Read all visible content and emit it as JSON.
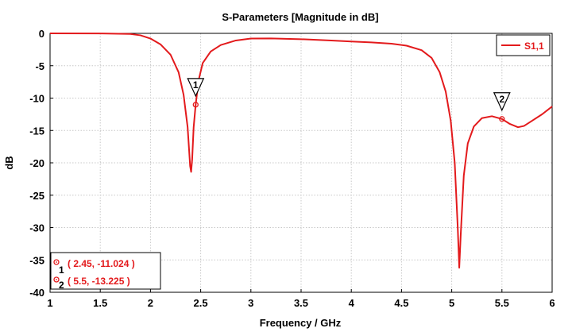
{
  "chart_data": {
    "type": "line",
    "title": "S-Parameters [Magnitude in dB]",
    "xlabel": "Frequency / GHz",
    "ylabel": "dB",
    "xlim": [
      1,
      6
    ],
    "ylim": [
      -40,
      0
    ],
    "x_ticks": [
      "1",
      "1.5",
      "2",
      "2.5",
      "3",
      "3.5",
      "4",
      "4.5",
      "5",
      "5.5",
      "6"
    ],
    "y_ticks": [
      "0",
      "-5",
      "-10",
      "-15",
      "-20",
      "-25",
      "-30",
      "-35",
      "-40"
    ],
    "grid": true,
    "legend": {
      "position": "top-right",
      "entries": [
        "S1,1"
      ]
    },
    "series": [
      {
        "name": "S1,1",
        "color": "#e31a1c",
        "points": [
          [
            1.0,
            0.0
          ],
          [
            1.5,
            -0.02
          ],
          [
            1.8,
            -0.1
          ],
          [
            1.9,
            -0.3
          ],
          [
            2.0,
            -0.8
          ],
          [
            2.1,
            -1.7
          ],
          [
            2.2,
            -3.3
          ],
          [
            2.28,
            -6.0
          ],
          [
            2.33,
            -9.5
          ],
          [
            2.37,
            -14.5
          ],
          [
            2.395,
            -20.5
          ],
          [
            2.405,
            -21.4
          ],
          [
            2.415,
            -19.5
          ],
          [
            2.43,
            -14.5
          ],
          [
            2.45,
            -11.024
          ],
          [
            2.48,
            -7.2
          ],
          [
            2.52,
            -4.6
          ],
          [
            2.6,
            -2.8
          ],
          [
            2.7,
            -1.8
          ],
          [
            2.85,
            -1.1
          ],
          [
            3.0,
            -0.8
          ],
          [
            3.2,
            -0.78
          ],
          [
            3.5,
            -0.9
          ],
          [
            3.8,
            -1.1
          ],
          [
            4.0,
            -1.25
          ],
          [
            4.2,
            -1.4
          ],
          [
            4.4,
            -1.6
          ],
          [
            4.55,
            -1.9
          ],
          [
            4.7,
            -2.6
          ],
          [
            4.8,
            -3.8
          ],
          [
            4.88,
            -6.0
          ],
          [
            4.94,
            -9.0
          ],
          [
            4.99,
            -13.5
          ],
          [
            5.03,
            -20.0
          ],
          [
            5.06,
            -30.0
          ],
          [
            5.075,
            -36.2
          ],
          [
            5.09,
            -31.0
          ],
          [
            5.12,
            -22.0
          ],
          [
            5.16,
            -17.0
          ],
          [
            5.22,
            -14.4
          ],
          [
            5.3,
            -13.1
          ],
          [
            5.4,
            -12.8
          ],
          [
            5.5,
            -13.225
          ],
          [
            5.58,
            -14.0
          ],
          [
            5.66,
            -14.5
          ],
          [
            5.72,
            -14.3
          ],
          [
            5.8,
            -13.5
          ],
          [
            5.9,
            -12.5
          ],
          [
            6.0,
            -11.3
          ]
        ]
      }
    ],
    "markers": [
      {
        "id": "1",
        "x": 2.45,
        "y": -11.024,
        "readout": "( 2.45, -11.024 )"
      },
      {
        "id": "2",
        "x": 5.5,
        "y": -13.225,
        "readout": "( 5.5, -13.225 )"
      }
    ]
  }
}
